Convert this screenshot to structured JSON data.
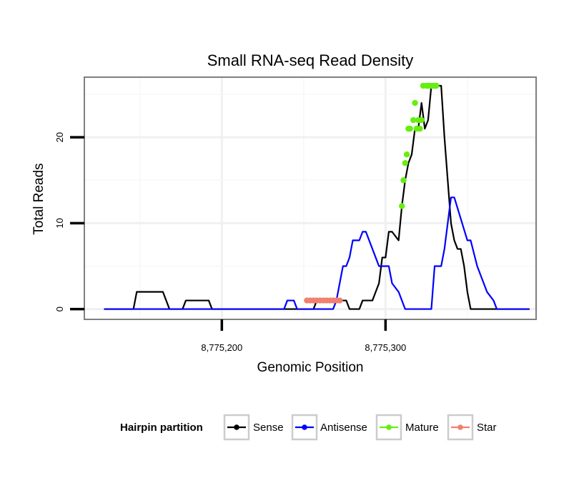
{
  "chart_data": {
    "type": "line",
    "title": "Small RNA-seq Read Density",
    "xlabel": "Genomic Position",
    "ylabel": "Total Reads",
    "xlim": [
      8775116,
      8775392
    ],
    "ylim": [
      -1.2,
      27
    ],
    "x_ticks": [
      {
        "value": 8775200,
        "label": "8,775,200"
      },
      {
        "value": 8775300,
        "label": "8,775,300"
      }
    ],
    "y_ticks": [
      {
        "value": 0,
        "label": "0"
      },
      {
        "value": 10,
        "label": "10"
      },
      {
        "value": 20,
        "label": "20"
      }
    ],
    "grid": true,
    "legend": {
      "title": "Hairpin partition",
      "position": "bottom",
      "entries": [
        {
          "label": "Sense",
          "color": "#000000"
        },
        {
          "label": "Antisense",
          "color": "#0000ff"
        },
        {
          "label": "Mature",
          "color": "#66ee11"
        },
        {
          "label": "Star",
          "color": "#f08070"
        }
      ]
    },
    "series": [
      {
        "name": "Sense",
        "color": "#000000",
        "style": "line",
        "x": [
          8775128,
          8775146,
          8775148,
          8775164,
          8775166,
          8775168,
          8775176,
          8775178,
          8775192,
          8775194,
          8775256,
          8775258,
          8775276,
          8775278,
          8775284,
          8775286,
          8775292,
          8775294,
          8775296,
          8775298,
          8775300,
          8775302,
          8775304,
          8775308,
          8775310,
          8775312,
          8775314,
          8775316,
          8775318,
          8775320,
          8775322,
          8775324,
          8775326,
          8775328,
          8775334,
          8775336,
          8775338,
          8775340,
          8775342,
          8775344,
          8775346,
          8775348,
          8775350,
          8775352,
          8775354,
          8775356,
          8775358,
          8775388
        ],
        "y": [
          0,
          0,
          2,
          2,
          1,
          0,
          0,
          1,
          1,
          0,
          0,
          1,
          1,
          0,
          0,
          1,
          1,
          2,
          3,
          6,
          6,
          9,
          9,
          8,
          12,
          15,
          17,
          18,
          21,
          21,
          24,
          21,
          22,
          26,
          26,
          20,
          15,
          10,
          8,
          7,
          7,
          5,
          2,
          0,
          0,
          0,
          0,
          0
        ]
      },
      {
        "name": "Antisense",
        "color": "#0000ff",
        "style": "line",
        "x": [
          8775128,
          8775238,
          8775240,
          8775244,
          8775246,
          8775268,
          8775270,
          8775272,
          8775274,
          8775276,
          8775278,
          8775280,
          8775284,
          8775286,
          8775288,
          8775290,
          8775294,
          8775296,
          8775298,
          8775302,
          8775304,
          8775308,
          8775310,
          8775312,
          8775314,
          8775316,
          8775328,
          8775330,
          8775334,
          8775336,
          8775338,
          8775340,
          8775342,
          8775350,
          8775352,
          8775356,
          8775358,
          8775360,
          8775362,
          8775366,
          8775368,
          8775388
        ],
        "y": [
          0,
          0,
          1,
          1,
          0,
          0,
          1,
          3,
          5,
          5,
          6,
          8,
          8,
          9,
          9,
          8,
          6,
          5,
          5,
          5,
          3,
          2,
          1,
          0,
          0,
          0,
          0,
          5,
          5,
          7,
          10,
          13,
          13,
          8,
          8,
          5,
          4,
          3,
          2,
          1,
          0,
          0
        ]
      },
      {
        "name": "Mature",
        "color": "#66ee11",
        "style": "points",
        "x": [
          8775310,
          8775311,
          8775312,
          8775313,
          8775314,
          8775315,
          8775317,
          8775318,
          8775319,
          8775320,
          8775321,
          8775322,
          8775323,
          8775325,
          8775326,
          8775327,
          8775328,
          8775329,
          8775330,
          8775331
        ],
        "y": [
          12,
          15,
          17,
          18,
          21,
          21,
          22,
          24,
          21,
          22,
          21,
          22,
          26,
          26,
          26,
          26,
          26,
          26,
          26,
          26
        ]
      },
      {
        "name": "Star",
        "color": "#f08070",
        "style": "points",
        "x": [
          8775252,
          8775254,
          8775256,
          8775258,
          8775260,
          8775262,
          8775264,
          8775266,
          8775268,
          8775270,
          8775272
        ],
        "y": [
          1,
          1,
          1,
          1,
          1,
          1,
          1,
          1,
          1,
          1,
          1
        ]
      }
    ]
  }
}
